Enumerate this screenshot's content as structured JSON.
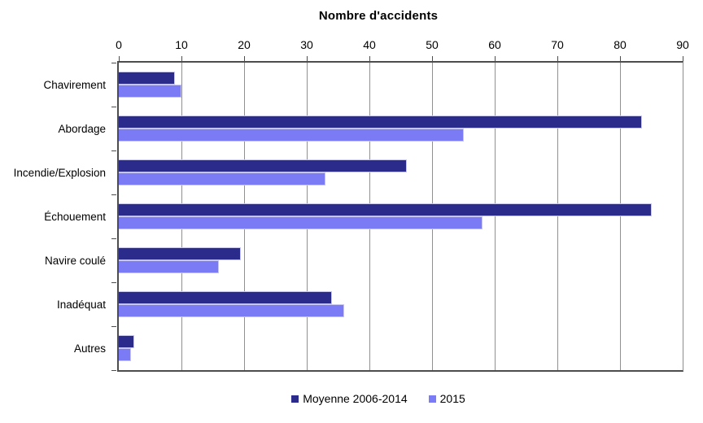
{
  "title": "Nombre d'accidents",
  "chart_data": {
    "type": "bar",
    "orientation": "horizontal",
    "title": "Nombre d'accidents",
    "categories": [
      "Chavirement",
      "Abordage",
      "Incendie/Explosion",
      "Échouement",
      "Navire coulé",
      "Inadéquat",
      "Autres"
    ],
    "series": [
      {
        "name": "Moyenne 2006-2014",
        "color": "#2b2b8c",
        "values": [
          9,
          83.5,
          46,
          85,
          19.5,
          34,
          2.5
        ]
      },
      {
        "name": "2015",
        "color": "#7b7bf5",
        "values": [
          10,
          55,
          33,
          58,
          16,
          36,
          2
        ]
      }
    ],
    "xlabel": "",
    "ylabel": "",
    "xlim": [
      0,
      90
    ],
    "x_ticks": [
      0,
      10,
      20,
      30,
      40,
      50,
      60,
      70,
      80,
      90
    ],
    "grid": "vertical",
    "legend_position": "bottom",
    "axis_position": "top"
  },
  "colors": {
    "series_dark": "#2b2b8c",
    "series_light": "#7b7bf5",
    "bar_outline": "#c6c6f0",
    "gridline": "#909090",
    "axis": "#4d4d4d",
    "background": "#ffffff",
    "text": "#000000"
  }
}
